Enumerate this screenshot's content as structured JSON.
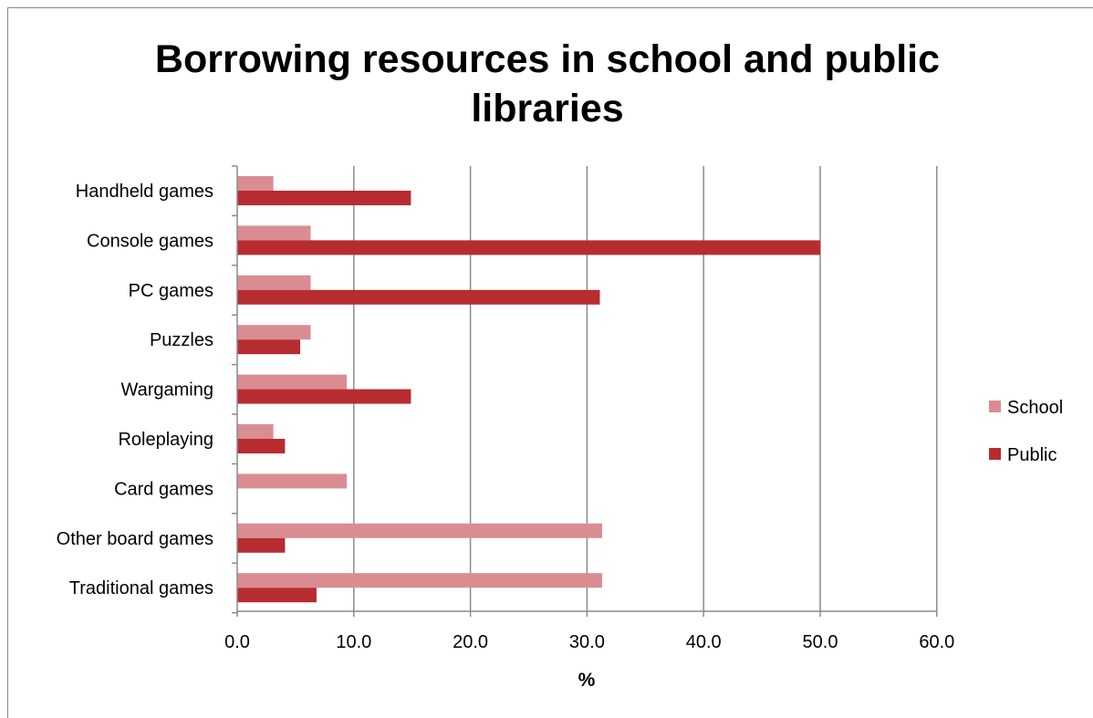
{
  "chart_data": {
    "type": "bar",
    "orientation": "horizontal",
    "title": "Borrowing resources in school and public libraries",
    "xlabel": "%",
    "ylabel": "",
    "xlim": [
      0,
      60
    ],
    "x_ticks": [
      "0.0",
      "10.0",
      "20.0",
      "30.0",
      "40.0",
      "50.0",
      "60.0"
    ],
    "x_tick_values": [
      0,
      10,
      20,
      30,
      40,
      50,
      60
    ],
    "grid": "vertical",
    "legend_position": "right",
    "categories": [
      "Handheld games",
      "Console games",
      "PC games",
      "Puzzles",
      "Wargaming",
      "Roleplaying",
      "Card games",
      "Other board games",
      "Traditional games"
    ],
    "series": [
      {
        "name": "School",
        "color": "#d98d93",
        "values": [
          3.1,
          6.3,
          6.3,
          6.3,
          9.4,
          3.1,
          9.4,
          31.3,
          31.3
        ]
      },
      {
        "name": "Public",
        "color": "#b72c30",
        "values": [
          14.9,
          50.0,
          31.1,
          5.4,
          14.9,
          4.1,
          0,
          4.1,
          6.8
        ]
      }
    ]
  },
  "colors": {
    "grid": "#8c8c8c",
    "axis": "#8c8c8c"
  }
}
